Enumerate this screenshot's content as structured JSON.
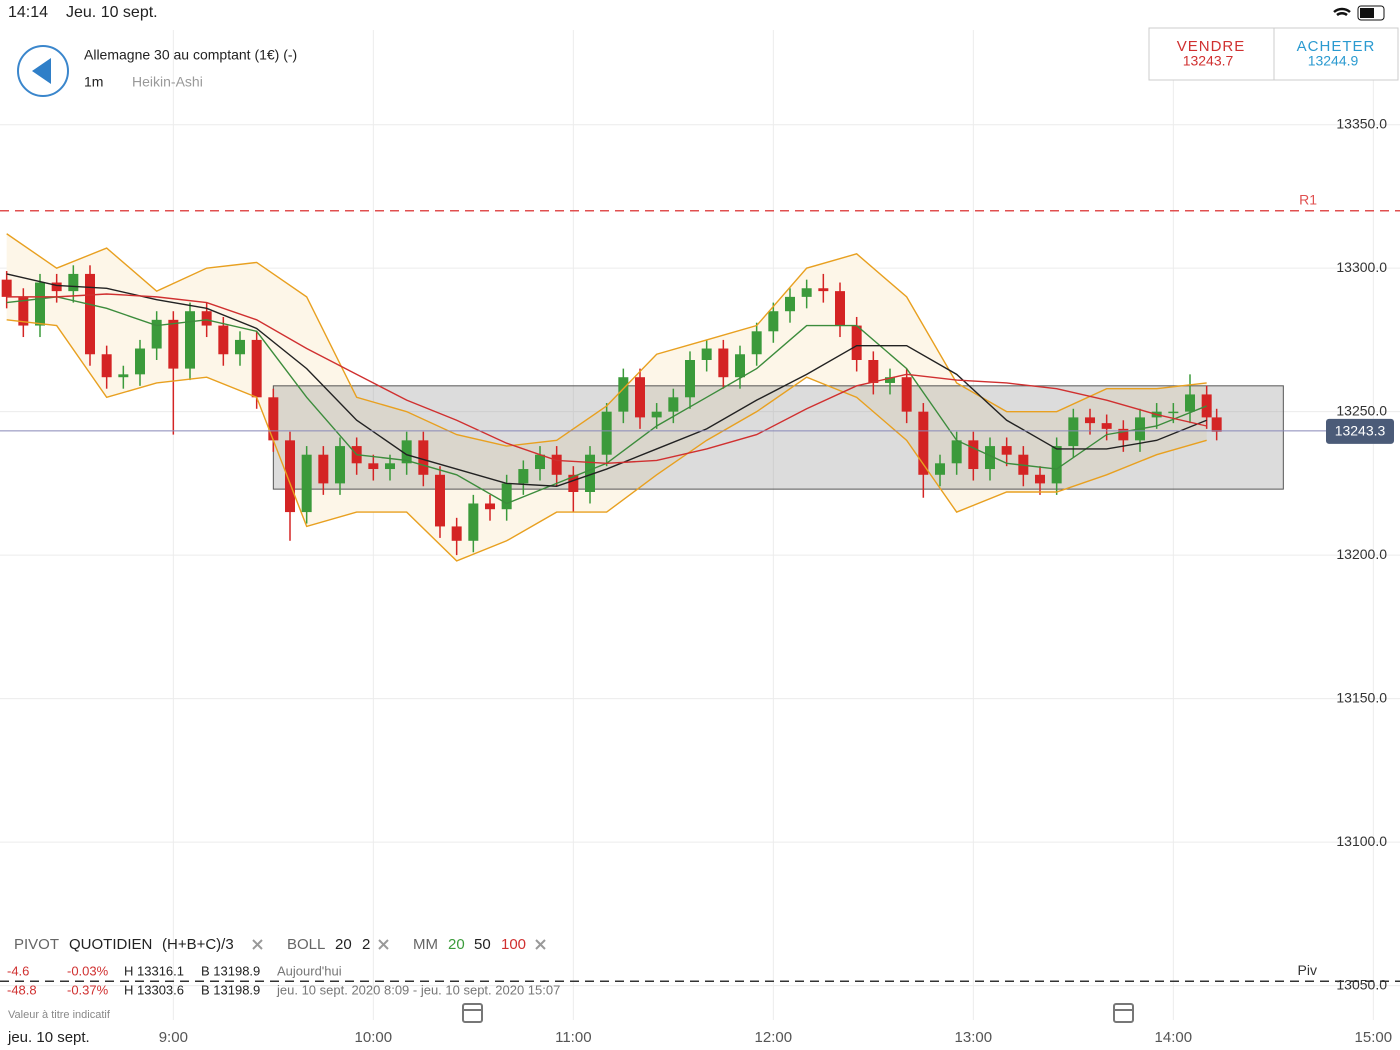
{
  "status_bar": {
    "time": "14:14",
    "date": "Jeu. 10 sept."
  },
  "header": {
    "title": "Allemagne 30 au comptant (1€) (-)",
    "interval": "1m",
    "chart_style": "Heikin-Ashi"
  },
  "quote": {
    "sell_label": "VENDRE",
    "sell": "13243.7",
    "buy_label": "ACHETER",
    "buy": "13244.9"
  },
  "legend": {
    "pivot": "PIVOT",
    "pivot_period": "QUOTIDIEN",
    "pivot_formula": "(H+B+C)/3",
    "boll": "BOLL",
    "boll_period": "20",
    "boll_dev": "2",
    "mm": "MM",
    "mm_periods": [
      "20",
      "50",
      "100"
    ],
    "rows": [
      [
        "-4.6",
        "-0.03%",
        "H 13316.1",
        "B 13198.9",
        "Aujourd'hui"
      ],
      [
        "-48.8",
        "-0.37%",
        "H 13303.6",
        "B 13198.9",
        "jeu. 10 sept. 2020 8:09 - jeu. 10 sept. 2020 15:07"
      ]
    ],
    "note": "Valeur à titre indicatif",
    "date": "jeu. 10 sept."
  },
  "chart_data": {
    "type": "candlestick",
    "xlim": [
      "8:08",
      "15:08"
    ],
    "ylim": [
      13038,
      13383
    ],
    "xticks": [
      "9:00",
      "10:00",
      "11:00",
      "12:00",
      "13:00",
      "14:00",
      "15:00"
    ],
    "yticks": [
      {
        "value": 13350,
        "label": "13350.0"
      },
      {
        "value": 13300,
        "label": "13300.0"
      },
      {
        "value": 13250,
        "label": "13250.0"
      },
      {
        "value": 13200,
        "label": "13200.0"
      },
      {
        "value": 13150,
        "label": "13150.0"
      },
      {
        "value": 13100,
        "label": "13100.0"
      },
      {
        "value": 13050,
        "label": "13050.0"
      }
    ],
    "grid": true,
    "up_color": "#3b9a3b",
    "down_color": "#d42424",
    "x": [
      "8:10",
      "8:15",
      "8:20",
      "8:25",
      "8:30",
      "8:35",
      "8:40",
      "8:45",
      "8:50",
      "8:55",
      "9:00",
      "9:05",
      "9:10",
      "9:15",
      "9:20",
      "9:25",
      "9:30",
      "9:35",
      "9:40",
      "9:45",
      "9:50",
      "9:55",
      "10:00",
      "10:05",
      "10:10",
      "10:15",
      "10:20",
      "10:25",
      "10:30",
      "10:35",
      "10:40",
      "10:45",
      "10:50",
      "10:55",
      "11:00",
      "11:05",
      "11:10",
      "11:15",
      "11:20",
      "11:25",
      "11:30",
      "11:35",
      "11:40",
      "11:45",
      "11:50",
      "11:55",
      "12:00",
      "12:05",
      "12:10",
      "12:15",
      "12:20",
      "12:25",
      "12:30",
      "12:35",
      "12:40",
      "12:45",
      "12:50",
      "12:55",
      "13:00",
      "13:05",
      "13:10",
      "13:15",
      "13:20",
      "13:25",
      "13:30",
      "13:35",
      "13:40",
      "13:45",
      "13:50",
      "13:55",
      "14:00",
      "14:05",
      "14:10",
      "14:13"
    ],
    "open": [
      13296,
      13290,
      13280,
      13295,
      13292,
      13298,
      13270,
      13262,
      13263,
      13272,
      13282,
      13265,
      13285,
      13280,
      13270,
      13275,
      13255,
      13240,
      13215,
      13235,
      13225,
      13238,
      13232,
      13230,
      13232,
      13240,
      13228,
      13210,
      13205,
      13218,
      13216,
      13225,
      13230,
      13235,
      13228,
      13222,
      13235,
      13250,
      13262,
      13248,
      13250,
      13255,
      13268,
      13272,
      13262,
      13270,
      13278,
      13285,
      13290,
      13293,
      13292,
      13280,
      13268,
      13260,
      13262,
      13250,
      13228,
      13232,
      13240,
      13230,
      13238,
      13235,
      13228,
      13225,
      13238,
      13248,
      13246,
      13244,
      13240,
      13248,
      13250,
      13250,
      13256,
      13248
    ],
    "high": [
      13299,
      13293,
      13298,
      13298,
      13301,
      13301,
      13273,
      13266,
      13275,
      13285,
      13285,
      13288,
      13288,
      13283,
      13278,
      13278,
      13258,
      13243,
      13238,
      13238,
      13241,
      13241,
      13235,
      13235,
      13243,
      13243,
      13231,
      13213,
      13221,
      13221,
      13228,
      13233,
      13238,
      13238,
      13231,
      13238,
      13253,
      13265,
      13265,
      13253,
      13258,
      13271,
      13275,
      13275,
      13273,
      13281,
      13288,
      13293,
      13296,
      13298,
      13295,
      13283,
      13271,
      13265,
      13265,
      13253,
      13235,
      13243,
      13243,
      13241,
      13241,
      13238,
      13231,
      13241,
      13251,
      13251,
      13249,
      13247,
      13251,
      13253,
      13253,
      13263,
      13259,
      13251
    ],
    "low": [
      13286,
      13276,
      13276,
      13288,
      13288,
      13266,
      13258,
      13258,
      13259,
      13268,
      13242,
      13261,
      13276,
      13266,
      13266,
      13251,
      13236,
      13205,
      13211,
      13221,
      13221,
      13228,
      13226,
      13226,
      13228,
      13224,
      13206,
      13200,
      13201,
      13212,
      13212,
      13221,
      13226,
      13224,
      13215,
      13218,
      13231,
      13246,
      13244,
      13244,
      13246,
      13251,
      13264,
      13258,
      13258,
      13266,
      13274,
      13281,
      13286,
      13288,
      13276,
      13264,
      13256,
      13256,
      13246,
      13220,
      13224,
      13228,
      13226,
      13226,
      13231,
      13224,
      13221,
      13221,
      13234,
      13242,
      13240,
      13236,
      13236,
      13244,
      13246,
      13246,
      13244,
      13240
    ],
    "close": [
      13290,
      13280,
      13295,
      13292,
      13298,
      13270,
      13262,
      13263,
      13272,
      13282,
      13265,
      13285,
      13280,
      13270,
      13275,
      13255,
      13240,
      13215,
      13235,
      13225,
      13238,
      13232,
      13230,
      13232,
      13240,
      13228,
      13210,
      13205,
      13218,
      13216,
      13225,
      13230,
      13235,
      13228,
      13222,
      13235,
      13250,
      13262,
      13248,
      13250,
      13255,
      13268,
      13272,
      13262,
      13270,
      13278,
      13285,
      13290,
      13293,
      13292,
      13280,
      13268,
      13260,
      13262,
      13250,
      13228,
      13232,
      13240,
      13230,
      13238,
      13235,
      13228,
      13225,
      13238,
      13248,
      13246,
      13244,
      13240,
      13248,
      13250,
      13250,
      13256,
      13248,
      13243
    ],
    "line_x": [
      "8:10",
      "8:25",
      "8:40",
      "8:55",
      "9:10",
      "9:25",
      "9:40",
      "9:55",
      "10:10",
      "10:25",
      "10:40",
      "10:55",
      "11:10",
      "11:25",
      "11:40",
      "11:55",
      "12:10",
      "12:25",
      "12:40",
      "12:55",
      "13:10",
      "13:25",
      "13:40",
      "13:55",
      "14:10"
    ],
    "band_color": "#fdf6e8",
    "lines": [
      {
        "color": "#e8a020",
        "values": [
          13312,
          13300,
          13307,
          13292,
          13300,
          13302,
          13290,
          13255,
          13250,
          13242,
          13238,
          13240,
          13252,
          13270,
          13275,
          13280,
          13300,
          13305,
          13290,
          13260,
          13250,
          13250,
          13258,
          13258,
          13260
        ]
      },
      {
        "color": "#e8a020",
        "values": [
          13282,
          13280,
          13255,
          13260,
          13262,
          13255,
          13210,
          13215,
          13215,
          13198,
          13205,
          13215,
          13215,
          13228,
          13240,
          13250,
          13262,
          13255,
          13240,
          13215,
          13222,
          13222,
          13228,
          13235,
          13240
        ]
      },
      {
        "color": "#3c8c3c",
        "values": [
          13288,
          13290,
          13286,
          13280,
          13282,
          13278,
          13255,
          13235,
          13233,
          13228,
          13218,
          13225,
          13232,
          13245,
          13255,
          13265,
          13280,
          13280,
          13265,
          13240,
          13232,
          13230,
          13242,
          13245,
          13252
        ]
      },
      {
        "color": "#222222",
        "values": [
          13298,
          13294,
          13293,
          13289,
          13286,
          13279,
          13265,
          13247,
          13235,
          13230,
          13225,
          13224,
          13230,
          13237,
          13244,
          13254,
          13263,
          13273,
          13273,
          13263,
          13247,
          13237,
          13237,
          13240,
          13247
        ]
      },
      {
        "color": "#d03030",
        "values": [
          13290,
          13290,
          13291,
          13290,
          13288,
          13282,
          13272,
          13263,
          13254,
          13247,
          13239,
          13233,
          13232,
          13233,
          13237,
          13242,
          13251,
          13259,
          13263,
          13261,
          13260,
          13258,
          13254,
          13249,
          13245
        ]
      }
    ],
    "zone": {
      "x": [
        "9:30",
        "14:33"
      ],
      "y": [
        13223,
        13259
      ]
    },
    "levels": [
      {
        "name": "R1",
        "value": 13320,
        "color": "#e05050"
      },
      {
        "name": "Piv",
        "value": 13051.5,
        "color": "#333333"
      }
    ],
    "last": 13243.3
  }
}
